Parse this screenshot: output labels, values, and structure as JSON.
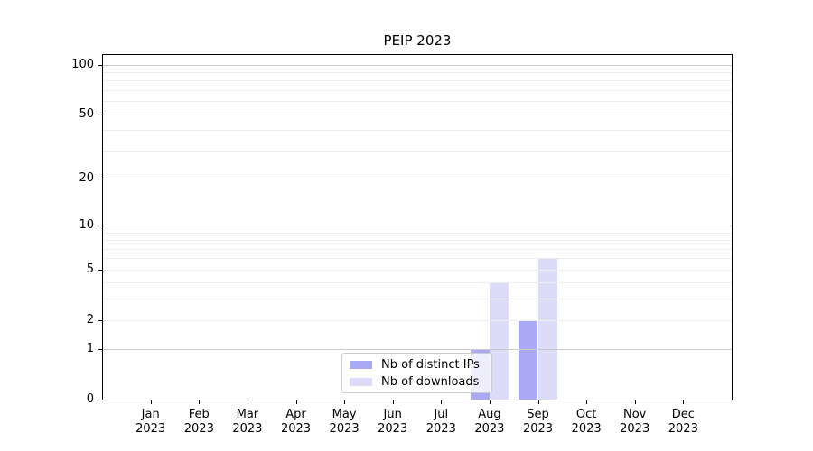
{
  "chart_data": {
    "type": "bar",
    "title": "PEIP 2023",
    "categories": [
      "Jan 2023",
      "Feb 2023",
      "Mar 2023",
      "Apr 2023",
      "May 2023",
      "Jun 2023",
      "Jul 2023",
      "Aug 2023",
      "Sep 2023",
      "Oct 2023",
      "Nov 2023",
      "Dec 2023"
    ],
    "series": [
      {
        "name": "Nb of distinct IPs",
        "color": "#a9a9f4",
        "values": [
          0,
          0,
          0,
          0,
          0,
          0,
          0,
          1,
          2,
          0,
          0,
          0
        ]
      },
      {
        "name": "Nb of downloads",
        "color": "#dcdcf8",
        "values": [
          0,
          0,
          0,
          0,
          0,
          0,
          0,
          4,
          6,
          0,
          0,
          0
        ]
      }
    ],
    "xlabel": "",
    "ylabel": "",
    "yscale": "log1p",
    "ylim": [
      0,
      100
    ],
    "ytick_values": [
      0,
      1,
      2,
      5,
      10,
      20,
      50,
      100
    ],
    "ytick_labels": [
      "0",
      "1",
      "2",
      "5",
      "10",
      "20",
      "50",
      "100"
    ],
    "grid": {
      "orientation": "horizontal",
      "major_values": [
        1,
        10,
        100
      ],
      "minor_values": [
        2,
        3,
        4,
        5,
        6,
        7,
        8,
        9,
        20,
        30,
        40,
        50,
        60,
        70,
        80,
        90
      ]
    },
    "legend": {
      "position": "inside-bottom-center",
      "items": [
        "Nb of distinct IPs",
        "Nb of downloads"
      ]
    }
  },
  "colors": {
    "background": "#ffffff",
    "spine": "#000000",
    "grid_major": "#c9c9c9",
    "grid_minor": "#ededed",
    "legend_border": "#cccccc",
    "legend_background": "rgba(255,255,255,0.8)",
    "bar_distinct_ips": "#a9a9f4",
    "bar_downloads": "#dcdcf8",
    "text": "#000000"
  }
}
